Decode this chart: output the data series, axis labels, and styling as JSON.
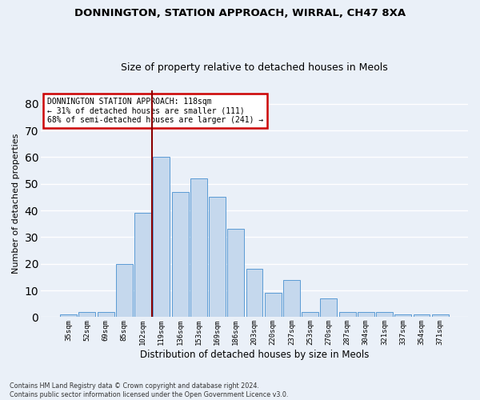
{
  "title1": "DONNINGTON, STATION APPROACH, WIRRAL, CH47 8XA",
  "title2": "Size of property relative to detached houses in Meols",
  "xlabel": "Distribution of detached houses by size in Meols",
  "ylabel": "Number of detached properties",
  "categories": [
    "35sqm",
    "52sqm",
    "69sqm",
    "85sqm",
    "102sqm",
    "119sqm",
    "136sqm",
    "153sqm",
    "169sqm",
    "186sqm",
    "203sqm",
    "220sqm",
    "237sqm",
    "253sqm",
    "270sqm",
    "287sqm",
    "304sqm",
    "321sqm",
    "337sqm",
    "354sqm",
    "371sqm"
  ],
  "values": [
    1,
    2,
    2,
    20,
    39,
    60,
    47,
    52,
    45,
    33,
    18,
    9,
    14,
    2,
    7,
    2,
    2,
    2,
    1,
    1,
    1
  ],
  "bar_color": "#c5d8ed",
  "bar_edge_color": "#5b9bd5",
  "bar_edge_width": 0.7,
  "red_line_index": 5,
  "annotation_line1": "DONNINGTON STATION APPROACH: 118sqm",
  "annotation_line2": "← 31% of detached houses are smaller (111)",
  "annotation_line3": "68% of semi-detached houses are larger (241) →",
  "annotation_box_color": "#ffffff",
  "annotation_box_edge_color": "#cc0000",
  "ylim": [
    0,
    85
  ],
  "yticks": [
    0,
    10,
    20,
    30,
    40,
    50,
    60,
    70,
    80
  ],
  "background_color": "#eaf0f8",
  "grid_color": "#ffffff",
  "footer_line1": "Contains HM Land Registry data © Crown copyright and database right 2024.",
  "footer_line2": "Contains public sector information licensed under the Open Government Licence v3.0.",
  "title_fontsize": 9.5,
  "subtitle_fontsize": 9,
  "bar_width": 0.9
}
